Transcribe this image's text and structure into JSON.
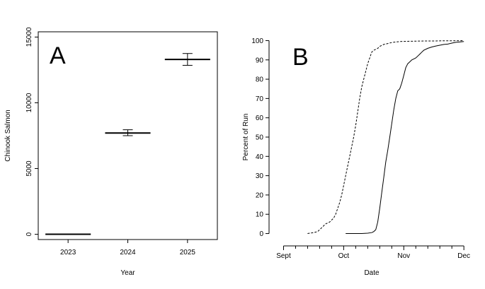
{
  "chart_data": [
    {
      "type": "box",
      "panel_label": "A",
      "xlabel": "Year",
      "ylabel": "Chinook Salmon",
      "categories": [
        "2023",
        "2024",
        "2025"
      ],
      "ylim": [
        -400,
        15400
      ],
      "yticks": [
        0,
        5000,
        10000,
        15000
      ],
      "ytick_labels": [
        "0",
        "5000",
        "10000",
        "15000"
      ],
      "estimates": [
        {
          "category": "2023",
          "mean": 0,
          "lower": 0,
          "upper": 0
        },
        {
          "category": "2024",
          "mean": 7700,
          "lower": 7500,
          "upper": 7950
        },
        {
          "category": "2025",
          "mean": 13300,
          "lower": 12850,
          "upper": 13750
        }
      ]
    },
    {
      "type": "line",
      "panel_label": "B",
      "xlabel": "Date",
      "ylabel": "Percent of Run",
      "xlim": [
        -3,
        91
      ],
      "ylim": [
        -2,
        102
      ],
      "yticks": [
        0,
        10,
        20,
        30,
        40,
        50,
        60,
        70,
        80,
        90,
        100
      ],
      "ytick_labels": [
        "0",
        "10",
        "20",
        "30",
        "40",
        "50",
        "60",
        "70",
        "80",
        "90",
        "100"
      ],
      "x_major_ticks": [
        0,
        30,
        60,
        90
      ],
      "x_major_labels": [
        "Sept",
        "Oct",
        "Nov",
        "Dec"
      ],
      "x_minor_ticks": [
        6,
        12,
        18,
        24,
        36,
        42,
        48,
        54,
        66,
        72,
        78,
        84
      ],
      "series": [
        {
          "style": "dashed",
          "x": [
            12,
            15,
            17,
            19,
            21,
            23,
            24,
            25,
            26,
            27,
            28,
            29,
            30,
            31,
            32,
            33,
            34,
            35,
            36,
            37,
            38,
            39,
            40,
            41,
            42,
            43,
            44,
            45,
            46,
            47,
            48,
            49,
            50,
            52,
            54,
            56,
            58,
            60,
            65,
            70,
            75,
            80,
            85,
            90
          ],
          "y": [
            0,
            0.5,
            1,
            3,
            5,
            6,
            7,
            8,
            10,
            13,
            16,
            20,
            25,
            30,
            35,
            40,
            45,
            50,
            56,
            63,
            70,
            76,
            80,
            84,
            88,
            91,
            94,
            95,
            95.5,
            96,
            97,
            97.5,
            98,
            98.5,
            99,
            99.3,
            99.5,
            99.6,
            99.7,
            99.8,
            99.8,
            99.9,
            99.9,
            100
          ]
        },
        {
          "style": "solid",
          "x": [
            31,
            35,
            39,
            42,
            44,
            45,
            46,
            47,
            48,
            49,
            50,
            51,
            52,
            53,
            54,
            55,
            56,
            57,
            58,
            59,
            60,
            61,
            62,
            63,
            64,
            65,
            66,
            67,
            68,
            69,
            70,
            72,
            74,
            76,
            78,
            80,
            82,
            84,
            86,
            88,
            90
          ],
          "y": [
            0,
            0,
            0,
            0.2,
            0.5,
            1,
            2,
            6,
            13,
            21,
            29,
            37,
            43,
            50,
            57,
            64,
            70,
            74,
            75,
            78,
            82,
            86,
            88,
            89,
            90,
            90.5,
            91,
            92,
            93,
            94,
            95,
            96,
            96.7,
            97.2,
            97.6,
            98,
            98.2,
            98.7,
            99.1,
            99.3,
            99.5
          ]
        }
      ]
    }
  ]
}
